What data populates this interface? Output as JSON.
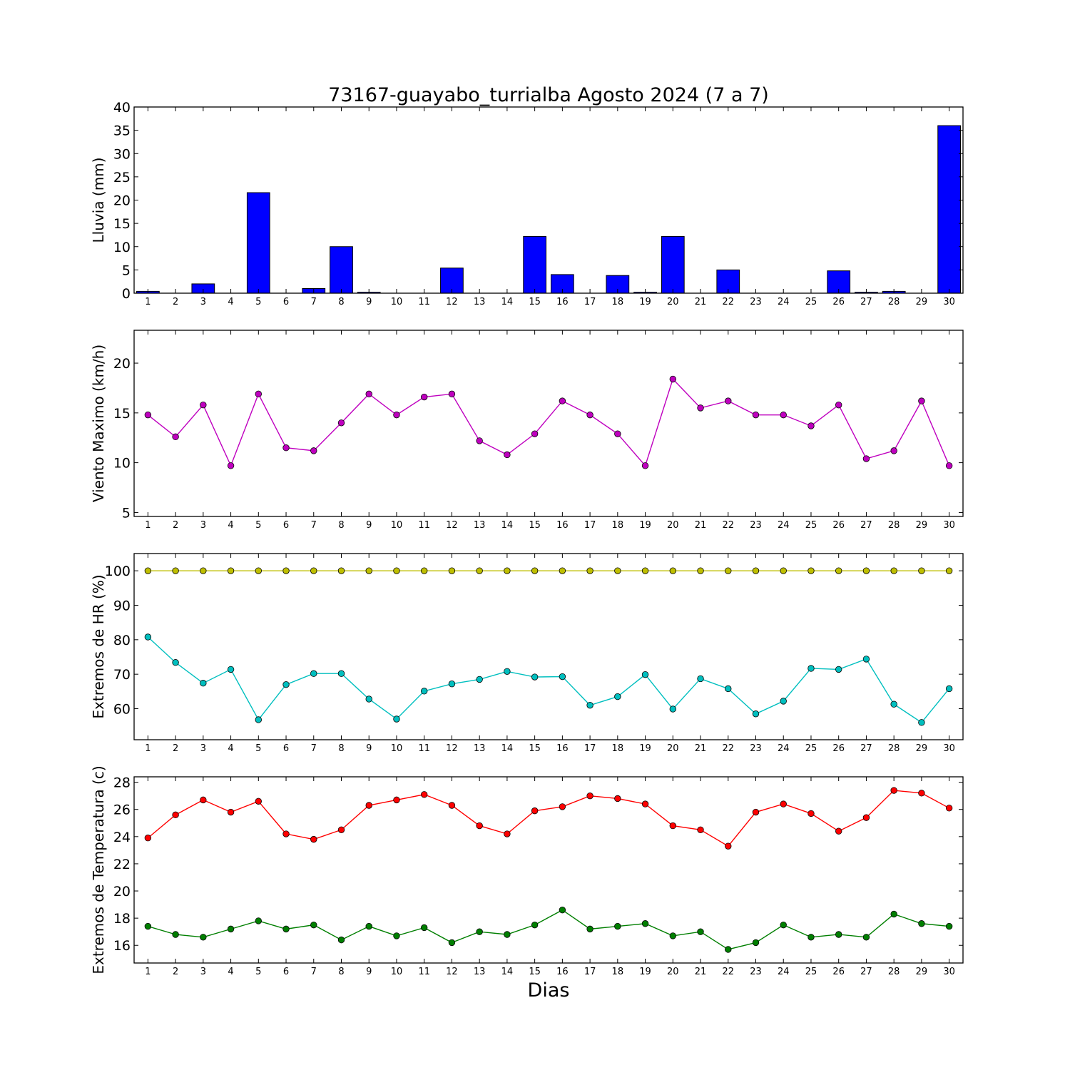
{
  "chart_data": {
    "title": "73167-guayabo_turrialba Agosto 2024  (7 a 7)",
    "xlabel": "Dias",
    "days": [
      1,
      2,
      3,
      4,
      5,
      6,
      7,
      8,
      9,
      10,
      11,
      12,
      13,
      14,
      15,
      16,
      17,
      18,
      19,
      20,
      21,
      22,
      23,
      24,
      25,
      26,
      27,
      28,
      29,
      30
    ],
    "panels": [
      {
        "type": "bar",
        "ylabel": "Lluvia (mm)",
        "ylim": [
          0,
          40
        ],
        "yticks": [
          0,
          5,
          10,
          15,
          20,
          25,
          30,
          35,
          40
        ],
        "series": [
          {
            "color": "#0000ff",
            "values": [
              0.4,
              0,
              2.0,
              0,
              21.6,
              0,
              1.0,
              10.0,
              0.2,
              0,
              0,
              5.4,
              0,
              0,
              12.2,
              4.0,
              0,
              3.8,
              0.2,
              12.2,
              0,
              5.0,
              0,
              0,
              0,
              4.8,
              0.2,
              0.4,
              0,
              36.0
            ]
          }
        ]
      },
      {
        "type": "line",
        "ylabel": "Viento Maximo (km/h)",
        "ylim": [
          4.6,
          23.3
        ],
        "yticks": [
          5,
          10,
          15,
          20
        ],
        "series": [
          {
            "color": "#bf00bf",
            "values": [
              14.8,
              12.6,
              15.8,
              9.7,
              16.9,
              11.5,
              11.2,
              14.0,
              16.9,
              14.8,
              16.6,
              16.9,
              12.2,
              10.8,
              12.9,
              16.2,
              14.8,
              12.9,
              9.7,
              18.4,
              15.5,
              16.2,
              14.8,
              14.8,
              13.7,
              15.8,
              10.4,
              11.2,
              16.2,
              9.7
            ]
          }
        ]
      },
      {
        "type": "line",
        "ylabel": "Extremos de HR (%)",
        "ylim": [
          51,
          105
        ],
        "yticks": [
          60,
          70,
          80,
          90,
          100
        ],
        "series": [
          {
            "color": "#bfbf00",
            "values": [
              100,
              100,
              100,
              100,
              100,
              100,
              100,
              100,
              100,
              100,
              100,
              100,
              100,
              100,
              100,
              100,
              100,
              100,
              100,
              100,
              100,
              100,
              100,
              100,
              100,
              100,
              100,
              100,
              100,
              100
            ]
          },
          {
            "color": "#00bfbf",
            "values": [
              80.8,
              73.4,
              67.4,
              71.4,
              56.8,
              67.0,
              70.2,
              70.2,
              62.8,
              57.0,
              65.1,
              67.2,
              68.5,
              70.8,
              69.2,
              69.3,
              61.0,
              63.5,
              69.9,
              59.9,
              68.7,
              65.8,
              58.5,
              62.2,
              71.7,
              71.4,
              74.4,
              61.3,
              56.0,
              65.8
            ]
          }
        ]
      },
      {
        "type": "line",
        "ylabel": "Extremos de Temperatura (c)",
        "ylim": [
          14.7,
          28.4
        ],
        "yticks": [
          16,
          18,
          20,
          22,
          24,
          26,
          28
        ],
        "series": [
          {
            "color": "#ff0000",
            "values": [
              23.9,
              25.6,
              26.7,
              25.8,
              26.6,
              24.2,
              23.8,
              24.5,
              26.3,
              26.7,
              27.1,
              26.3,
              24.8,
              24.2,
              25.9,
              26.2,
              27.0,
              26.8,
              26.4,
              24.8,
              24.5,
              23.3,
              25.8,
              26.4,
              25.7,
              24.4,
              25.4,
              27.4,
              27.2,
              26.1
            ]
          },
          {
            "color": "#007f00",
            "values": [
              17.4,
              16.8,
              16.6,
              17.2,
              17.8,
              17.2,
              17.5,
              16.4,
              17.4,
              16.7,
              17.3,
              16.2,
              17.0,
              16.8,
              17.5,
              18.6,
              17.2,
              17.4,
              17.6,
              16.7,
              17.0,
              15.7,
              16.2,
              17.5,
              16.6,
              16.8,
              16.6,
              18.3,
              17.6,
              17.4
            ]
          }
        ]
      }
    ]
  }
}
